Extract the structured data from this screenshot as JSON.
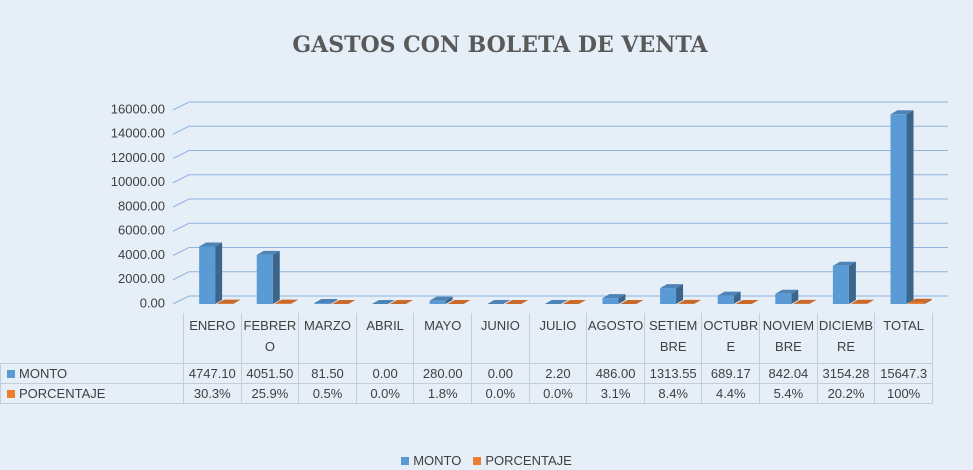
{
  "chart_data": {
    "type": "bar3d",
    "title": "GASTOS CON BOLETA DE VENTA",
    "categories": [
      "ENERO",
      "FEBRERO",
      "MARZO",
      "ABRIL",
      "MAYO",
      "JUNIO",
      "JULIO",
      "AGOSTO",
      "SETIEMBRE",
      "OCTUBRE",
      "NOVIEMBRE",
      "DICIEMBRE",
      "TOTAL"
    ],
    "series": [
      {
        "name": "MONTO",
        "color": "#5b9bd5",
        "values": [
          4747.1,
          4051.5,
          81.5,
          0,
          280,
          0,
          2.2,
          486,
          1313.55,
          689.17,
          842.04,
          3154.28,
          15647.3
        ],
        "value_labels": [
          "4747.10",
          "4051.50",
          "81.50",
          "0.00",
          "280.00",
          "0.00",
          "2.20",
          "486.00",
          "1313.55",
          "689.17",
          "842.04",
          "3154.28",
          "15647.3"
        ]
      },
      {
        "name": "PORCENTAJE",
        "color": "#ed7d31",
        "values": [
          30.3,
          25.9,
          0.5,
          0,
          1.8,
          0,
          0,
          3.1,
          8.4,
          4.4,
          5.4,
          20.2,
          100
        ],
        "value_labels": [
          "30.3%",
          "25.9%",
          "0.5%",
          "0.0%",
          "1.8%",
          "0.0%",
          "0.0%",
          "3.1%",
          "8.4%",
          "4.4%",
          "5.4%",
          "20.2%",
          "100%"
        ]
      }
    ],
    "ylim": [
      0,
      16000
    ],
    "yticks": [
      {
        "value": 0,
        "label": "0.00"
      },
      {
        "value": 2000,
        "label": "2000.00"
      },
      {
        "value": 4000,
        "label": "4000.00"
      },
      {
        "value": 6000,
        "label": "6000.00"
      },
      {
        "value": 8000,
        "label": "8000.00"
      },
      {
        "value": 10000,
        "label": "10000.00"
      },
      {
        "value": 12000,
        "label": "12000.00"
      },
      {
        "value": 14000,
        "label": "14000.00"
      },
      {
        "value": 16000,
        "label": "16000.00"
      }
    ],
    "grid": true,
    "legend": "bottom",
    "data_table": true
  }
}
